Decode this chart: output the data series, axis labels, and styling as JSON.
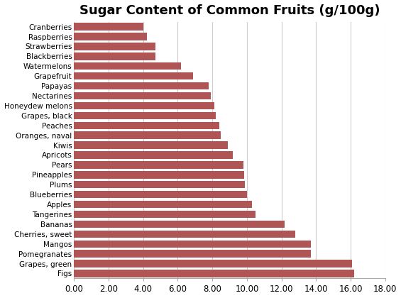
{
  "title": "Sugar Content of Common Fruits (g/100g)",
  "fruits": [
    "Cranberries",
    "Raspberries",
    "Strawberries",
    "Blackberries",
    "Watermelons",
    "Grapefruit",
    "Papayas",
    "Nectarines",
    "Honeydew melons",
    "Grapes, black",
    "Peaches",
    "Oranges, naval",
    "Kiwis",
    "Apricots",
    "Pears",
    "Pineapples",
    "Plums",
    "Blueberries",
    "Apples",
    "Tangerines",
    "Bananas",
    "Cherries, sweet",
    "Mangos",
    "Pomegranates",
    "Grapes, green",
    "Figs"
  ],
  "values": [
    4.0,
    4.2,
    4.7,
    4.7,
    6.2,
    6.9,
    7.8,
    7.9,
    8.1,
    8.2,
    8.4,
    8.5,
    8.9,
    9.2,
    9.8,
    9.85,
    9.9,
    10.0,
    10.3,
    10.5,
    12.2,
    12.8,
    13.7,
    13.7,
    16.1,
    16.2
  ],
  "bar_color": "#b05555",
  "background_color": "#ffffff",
  "xlim": [
    0,
    18
  ],
  "xticks": [
    0.0,
    2.0,
    4.0,
    6.0,
    8.0,
    10.0,
    12.0,
    14.0,
    16.0,
    18.0
  ],
  "xtick_labels": [
    "0.00",
    "2.00",
    "4.00",
    "6.00",
    "8.00",
    "10.00",
    "12.00",
    "14.00",
    "16.00",
    "18.00"
  ],
  "grid_color": "#cccccc",
  "title_fontsize": 13,
  "label_fontsize": 7.5,
  "tick_fontsize": 8.5,
  "bar_height": 0.75
}
